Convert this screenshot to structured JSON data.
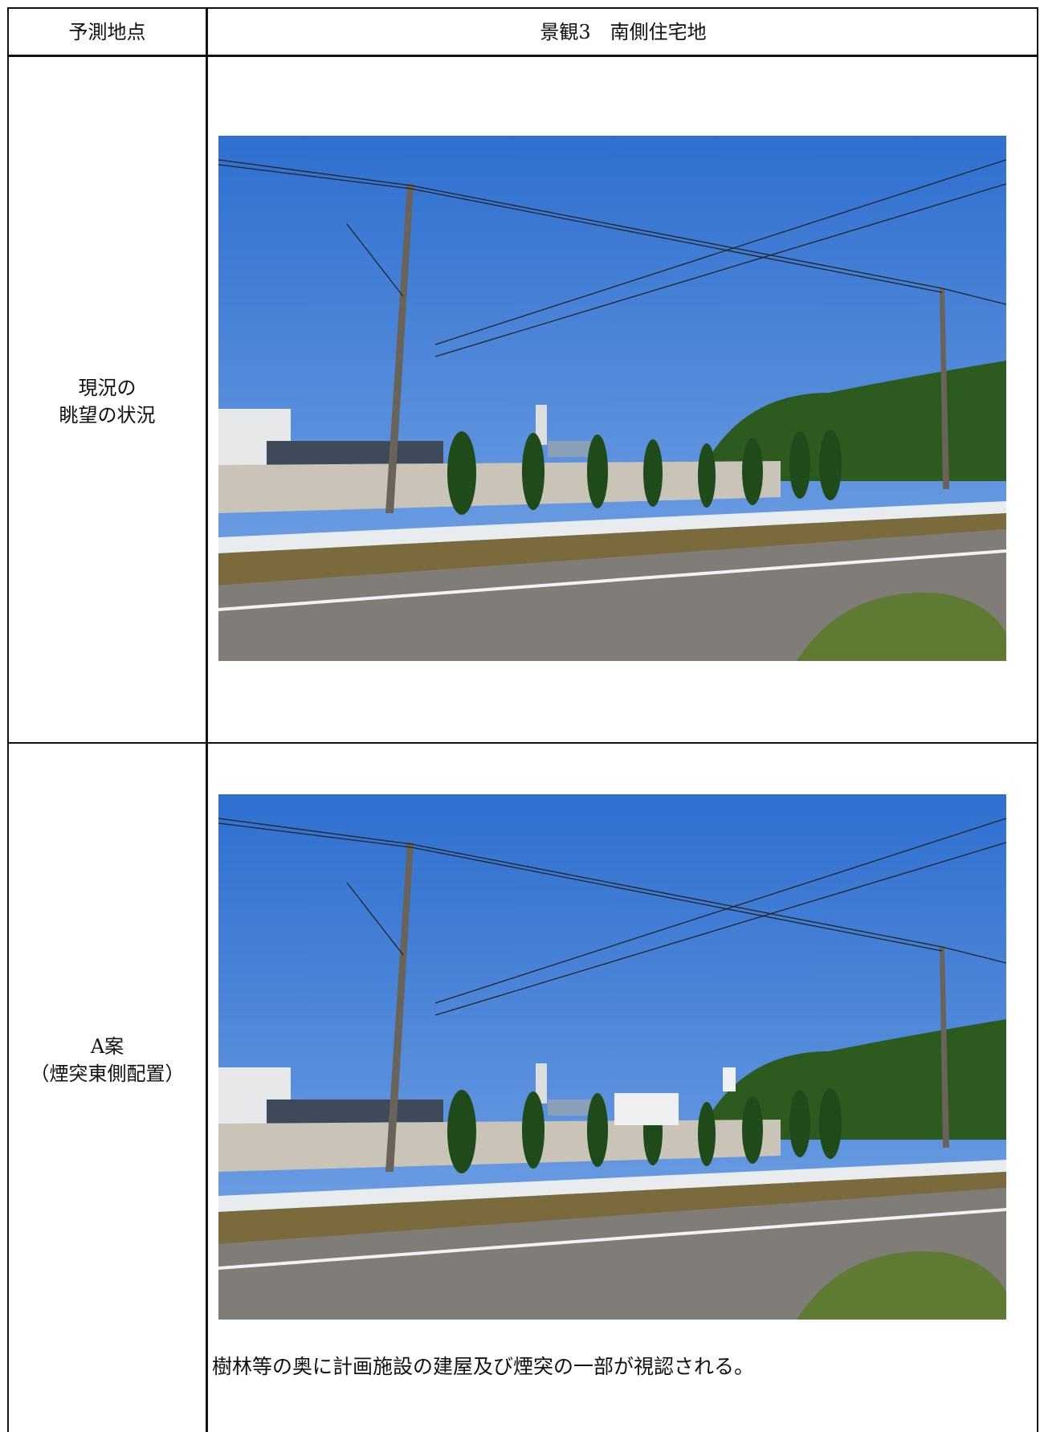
{
  "table": {
    "header": [
      "予測地点",
      "景観3　南側住宅地"
    ],
    "rows": [
      {
        "label": [
          "現況の",
          "眺望の状況"
        ]
      },
      {
        "label": [
          "A案",
          "（煙突東側配置）"
        ],
        "note": "樹林等の奥に計画施設の建屋及び煙突の一部が視認される。"
      }
    ]
  }
}
